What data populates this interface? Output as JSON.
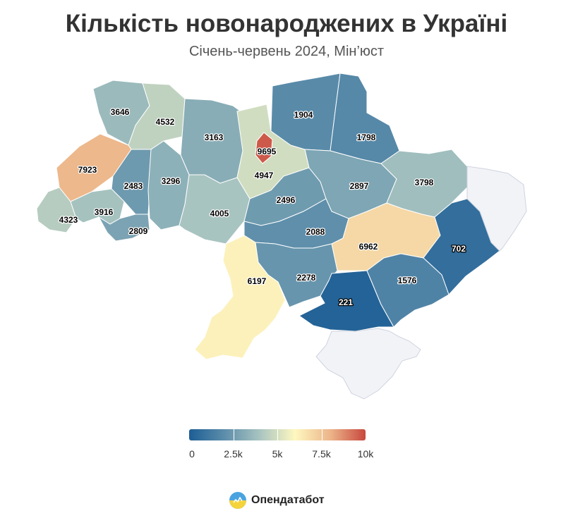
{
  "title": "Кількість новонароджених в Україні",
  "subtitle": "Січень-червень 2024, Мін’юст",
  "legend": {
    "min": 0,
    "max": 10000,
    "colors": [
      "#1d5e95",
      "#5c8daa",
      "#a8c4c0",
      "#fef8c0",
      "#ecb58a",
      "#c8483e"
    ],
    "tick_labels": [
      "0",
      "2.5k",
      "5k",
      "7.5k",
      "10k"
    ],
    "tick_values": [
      0,
      2500,
      5000,
      7500,
      10000
    ]
  },
  "no_data_color": "#f2f3f7",
  "regions": [
    {
      "name": "Volyn",
      "value": 3646,
      "label": "3646"
    },
    {
      "name": "Rivne",
      "value": 4532,
      "label": "4532"
    },
    {
      "name": "Zhytomyr",
      "value": 3163,
      "label": "3163"
    },
    {
      "name": "Kyiv city",
      "value": 9695,
      "label": "9695"
    },
    {
      "name": "Kyiv oblast",
      "value": 4947,
      "label": "4947"
    },
    {
      "name": "Chernihiv",
      "value": 1904,
      "label": "1904"
    },
    {
      "name": "Sumy",
      "value": 1798,
      "label": "1798"
    },
    {
      "name": "Lviv",
      "value": 7923,
      "label": "7923"
    },
    {
      "name": "Ternopil",
      "value": 2483,
      "label": "2483"
    },
    {
      "name": "Khmelnytskyi",
      "value": 3296,
      "label": "3296"
    },
    {
      "name": "Vinnytsia",
      "value": 4005,
      "label": "4005"
    },
    {
      "name": "Zakarpattia",
      "value": 4323,
      "label": "4323"
    },
    {
      "name": "Ivano-Frankivsk",
      "value": 3916,
      "label": "3916"
    },
    {
      "name": "Chernivtsi",
      "value": 2809,
      "label": "2809"
    },
    {
      "name": "Cherkasy",
      "value": 2496,
      "label": "2496"
    },
    {
      "name": "Poltava",
      "value": 2897,
      "label": "2897"
    },
    {
      "name": "Kharkiv",
      "value": 3798,
      "label": "3798"
    },
    {
      "name": "Kirovohrad",
      "value": 2088,
      "label": "2088"
    },
    {
      "name": "Dnipropetrovsk",
      "value": 6962,
      "label": "6962"
    },
    {
      "name": "Donetsk",
      "value": 702,
      "label": "702"
    },
    {
      "name": "Odesa",
      "value": 6197,
      "label": "6197"
    },
    {
      "name": "Mykolaiv",
      "value": 2278,
      "label": "2278"
    },
    {
      "name": "Kherson",
      "value": 221,
      "label": "221"
    },
    {
      "name": "Zaporizhzhia",
      "value": 1576,
      "label": "1576"
    },
    {
      "name": "Luhansk",
      "value": null,
      "label": ""
    },
    {
      "name": "Crimea",
      "value": null,
      "label": ""
    }
  ],
  "branding": {
    "name": "Опендатабот",
    "logo": "opendatabot-logo"
  }
}
